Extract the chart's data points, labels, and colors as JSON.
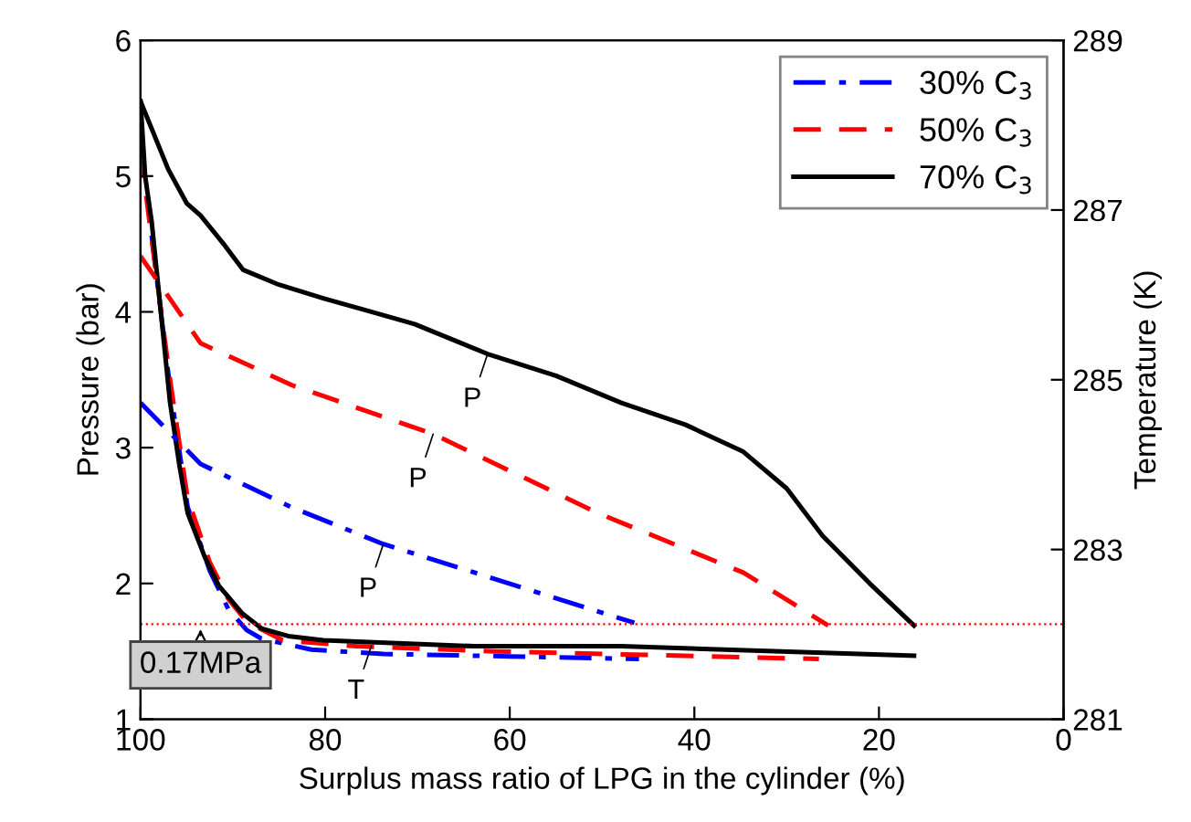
{
  "chart_data": {
    "type": "line",
    "xlabel": "Surplus mass ratio of LPG in the cylinder (%)",
    "ylabel": "Pressure (bar)",
    "y2label": "Temperature (K)",
    "xlim": [
      100,
      0
    ],
    "xticks": [
      100,
      80,
      60,
      40,
      20,
      0
    ],
    "ylim": [
      1,
      6
    ],
    "yticks": [
      1,
      2,
      3,
      4,
      5,
      6
    ],
    "y2lim": [
      281,
      289
    ],
    "y2ticks": [
      281,
      283,
      285,
      287,
      289
    ],
    "grid": false,
    "legend": "top right",
    "marker": "none",
    "series": [
      {
        "name": "30% C$_{3}$",
        "color": "#0000ff",
        "line_style": "dashdot",
        "x": [
          100,
          93.5,
          83.6,
          73.7,
          63.8,
          46.5
        ],
        "values": [
          3.33,
          2.88,
          2.56,
          2.29,
          2.08,
          1.71
        ]
      },
      {
        "name": "50% C$_{3}$",
        "color": "#ff0000",
        "line_style": "dashed",
        "x": [
          100,
          93.5,
          83.6,
          68.3,
          50.5,
          34.7,
          25.5
        ],
        "values": [
          4.41,
          3.77,
          3.46,
          3.1,
          2.52,
          2.08,
          1.69
        ]
      },
      {
        "name": "70% C$_{3}$",
        "color": "#000000",
        "line_style": "solid",
        "x": [
          100,
          97,
          95,
          93.5,
          91,
          88.9,
          85,
          80.2,
          75,
          70.3,
          62.4,
          55,
          47.9,
          41,
          34.7,
          30,
          26.1,
          21,
          16.2
        ],
        "values": [
          5.55,
          5.05,
          4.8,
          4.71,
          4.5,
          4.31,
          4.2,
          4.1,
          4.0,
          3.91,
          3.69,
          3.53,
          3.33,
          3.17,
          2.97,
          2.7,
          2.35,
          2.0,
          1.69
        ]
      },
      {
        "color": "#0000ff",
        "line_style": "dashdot",
        "axis": "y2",
        "x": [
          98.8,
          96.8,
          94.9,
          92.5,
          90.5,
          88.5,
          86.9,
          81.5,
          73.7,
          60,
          46
        ],
        "values": [
          286.7,
          284.9,
          283.5,
          282.75,
          282.3,
          282.05,
          281.95,
          281.82,
          281.77,
          281.74,
          281.71
        ]
      },
      {
        "color": "#ff0000",
        "line_style": "dashed",
        "axis": "y2",
        "x": [
          100,
          98.8,
          96.8,
          94.9,
          92.5,
          90.5,
          88.5,
          84.6,
          76.6,
          61.6,
          26.5
        ],
        "values": [
          287.7,
          286.66,
          285.0,
          283.6,
          282.85,
          282.42,
          282.15,
          281.93,
          281.86,
          281.8,
          281.71
        ]
      },
      {
        "color": "#000000",
        "line_style": "solid",
        "axis": "y2",
        "x": [
          100,
          99.5,
          98.8,
          97.8,
          96.8,
          95.8,
          94.9,
          93,
          91.5,
          89,
          86.9,
          84,
          80.2,
          63.8,
          47.9,
          16.2
        ],
        "values": [
          288.28,
          287.4,
          286.87,
          285.8,
          284.73,
          284.0,
          283.43,
          282.9,
          282.57,
          282.25,
          282.07,
          281.98,
          281.93,
          281.86,
          281.86,
          281.75
        ]
      }
    ],
    "ref_lines": [
      {
        "axis": "y",
        "value": 1.7,
        "label": "0.17MPa",
        "color": "#ff0000",
        "line_style": "dotted"
      }
    ],
    "annotations": [
      {
        "text": "P",
        "x": 62.4,
        "y": 3.69
      },
      {
        "text": "P",
        "x": 68.3,
        "y": 3.1
      },
      {
        "text": "P",
        "x": 73.7,
        "y": 2.29
      },
      {
        "text": "T",
        "x": 75,
        "y": 1.54
      }
    ]
  }
}
